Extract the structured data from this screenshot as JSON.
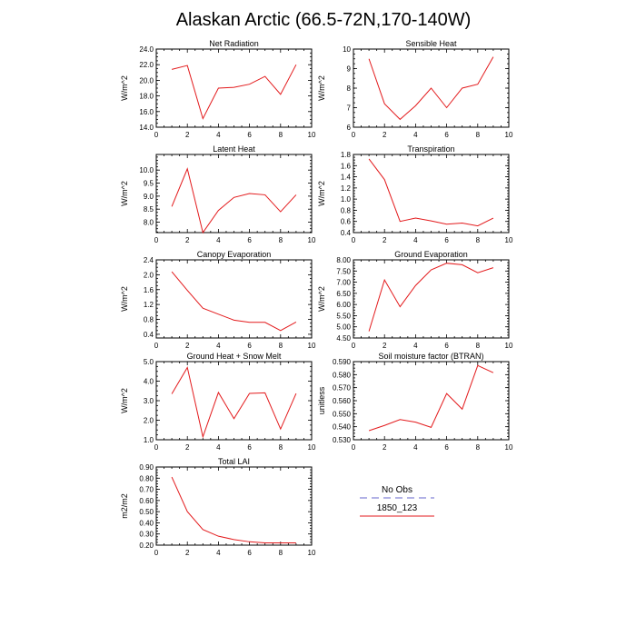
{
  "title": "Alaskan Arctic (66.5-72N,170-140W)",
  "colors": {
    "model_line": "#e31a1c",
    "obs_line": "#9999dd",
    "axis": "#000000"
  },
  "legend": {
    "entries": [
      {
        "label": "No Obs",
        "style": "dashed",
        "color": "#9999dd"
      },
      {
        "label": "1850_123",
        "style": "solid",
        "color": "#e31a1c"
      }
    ]
  },
  "chart_data": [
    {
      "type": "line",
      "title": "Net Radiation",
      "xlabel": "",
      "ylabel": "W/m^2",
      "xlim": [
        0,
        10
      ],
      "ylim": [
        14,
        24
      ],
      "xticks": [
        "0",
        "2",
        "4",
        "6",
        "8",
        "10"
      ],
      "yticks": [
        "14.0",
        "16.0",
        "18.0",
        "20.0",
        "22.0",
        "24.0"
      ],
      "x": [
        1,
        2,
        3,
        4,
        5,
        6,
        7,
        8,
        9
      ],
      "series": [
        {
          "name": "1850_123",
          "values": [
            21.4,
            21.9,
            15.1,
            19.0,
            19.1,
            19.5,
            20.5,
            18.2,
            22.0
          ]
        }
      ]
    },
    {
      "type": "line",
      "title": "Sensible Heat",
      "xlabel": "",
      "ylabel": "W/m^2",
      "xlim": [
        0,
        10
      ],
      "ylim": [
        6,
        10
      ],
      "xticks": [
        "0",
        "2",
        "4",
        "6",
        "8",
        "10"
      ],
      "yticks": [
        "6",
        "7",
        "8",
        "9",
        "10"
      ],
      "x": [
        1,
        2,
        3,
        4,
        5,
        6,
        7,
        8,
        9
      ],
      "series": [
        {
          "name": "1850_123",
          "values": [
            9.5,
            7.2,
            6.4,
            7.1,
            8.0,
            7.0,
            8.0,
            8.2,
            9.6
          ]
        }
      ]
    },
    {
      "type": "line",
      "title": "Latent Heat",
      "xlabel": "",
      "ylabel": "W/m^2",
      "xlim": [
        0,
        10
      ],
      "ylim": [
        7.6,
        10.6
      ],
      "xticks": [
        "0",
        "2",
        "4",
        "6",
        "8",
        "10"
      ],
      "yticks": [
        "8.0",
        "8.5",
        "9.0",
        "9.5",
        "10.0"
      ],
      "x": [
        1,
        2,
        3,
        4,
        5,
        6,
        7,
        8,
        9
      ],
      "series": [
        {
          "name": "1850_123",
          "values": [
            8.6,
            10.05,
            7.6,
            8.45,
            8.95,
            9.1,
            9.05,
            8.4,
            9.05
          ]
        }
      ]
    },
    {
      "type": "line",
      "title": "Transpiration",
      "xlabel": "",
      "ylabel": "W/m^2",
      "xlim": [
        0,
        10
      ],
      "ylim": [
        0.4,
        1.8
      ],
      "xticks": [
        "0",
        "2",
        "4",
        "6",
        "8",
        "10"
      ],
      "yticks": [
        "0.4",
        "0.6",
        "0.8",
        "1.0",
        "1.2",
        "1.4",
        "1.6",
        "1.8"
      ],
      "x": [
        1,
        2,
        3,
        4,
        5,
        6,
        7,
        8,
        9
      ],
      "series": [
        {
          "name": "1850_123",
          "values": [
            1.72,
            1.35,
            0.6,
            0.66,
            0.61,
            0.55,
            0.57,
            0.52,
            0.66
          ]
        }
      ]
    },
    {
      "type": "line",
      "title": "Canopy Evaporation",
      "xlabel": "",
      "ylabel": "W/m^2",
      "xlim": [
        0,
        10
      ],
      "ylim": [
        0.3,
        2.4
      ],
      "xticks": [
        "0",
        "2",
        "4",
        "6",
        "8",
        "10"
      ],
      "yticks": [
        "0.4",
        "0.8",
        "1.2",
        "1.6",
        "2.0",
        "2.4"
      ],
      "x": [
        1,
        2,
        3,
        4,
        5,
        6,
        7,
        8,
        9
      ],
      "series": [
        {
          "name": "1850_123",
          "values": [
            2.08,
            1.58,
            1.1,
            0.94,
            0.78,
            0.72,
            0.72,
            0.5,
            0.73
          ]
        }
      ]
    },
    {
      "type": "line",
      "title": "Ground Evaporation",
      "xlabel": "",
      "ylabel": "W/m^2",
      "xlim": [
        0,
        10
      ],
      "ylim": [
        4.5,
        8.0
      ],
      "xticks": [
        "0",
        "2",
        "4",
        "6",
        "8",
        "10"
      ],
      "yticks": [
        "4.50",
        "5.00",
        "5.50",
        "6.00",
        "6.50",
        "7.00",
        "7.50",
        "8.00"
      ],
      "x": [
        1,
        2,
        3,
        4,
        5,
        6,
        7,
        8,
        9
      ],
      "series": [
        {
          "name": "1850_123",
          "values": [
            4.8,
            7.1,
            5.9,
            6.85,
            7.55,
            7.85,
            7.78,
            7.42,
            7.65
          ]
        }
      ]
    },
    {
      "type": "line",
      "title": "Ground Heat + Snow Melt",
      "xlabel": "",
      "ylabel": "W/m^2",
      "xlim": [
        0,
        10
      ],
      "ylim": [
        1.0,
        5.0
      ],
      "xticks": [
        "0",
        "2",
        "4",
        "6",
        "8",
        "10"
      ],
      "yticks": [
        "1.0",
        "2.0",
        "3.0",
        "4.0",
        "5.0"
      ],
      "x": [
        1,
        2,
        3,
        4,
        5,
        6,
        7,
        8,
        9
      ],
      "series": [
        {
          "name": "1850_123",
          "values": [
            3.35,
            4.7,
            1.15,
            3.42,
            2.08,
            3.37,
            3.4,
            1.55,
            3.37
          ]
        }
      ]
    },
    {
      "type": "line",
      "title": "Soil moisture factor (BTRAN)",
      "xlabel": "",
      "ylabel": "unitless",
      "xlim": [
        0,
        10
      ],
      "ylim": [
        0.53,
        0.59
      ],
      "xticks": [
        "0",
        "2",
        "4",
        "6",
        "8",
        "10"
      ],
      "yticks": [
        "0.530",
        "0.540",
        "0.550",
        "0.560",
        "0.570",
        "0.580",
        "0.590"
      ],
      "x": [
        1,
        2,
        3,
        4,
        5,
        6,
        7,
        8,
        9
      ],
      "series": [
        {
          "name": "1850_123",
          "values": [
            0.537,
            0.541,
            0.5455,
            0.5435,
            0.5395,
            0.5655,
            0.5535,
            0.587,
            0.5815
          ]
        }
      ]
    },
    {
      "type": "line",
      "title": "Total LAI",
      "xlabel": "",
      "ylabel": "m2/m2",
      "xlim": [
        0,
        10
      ],
      "ylim": [
        0.2,
        0.9
      ],
      "xticks": [
        "0",
        "2",
        "4",
        "6",
        "8",
        "10"
      ],
      "yticks": [
        "0.20",
        "0.30",
        "0.40",
        "0.50",
        "0.60",
        "0.70",
        "0.80",
        "0.90"
      ],
      "x": [
        1,
        2,
        3,
        4,
        5,
        6,
        7,
        8,
        9
      ],
      "series": [
        {
          "name": "1850_123",
          "values": [
            0.81,
            0.5,
            0.34,
            0.28,
            0.25,
            0.23,
            0.22,
            0.22,
            0.22
          ]
        }
      ]
    }
  ]
}
